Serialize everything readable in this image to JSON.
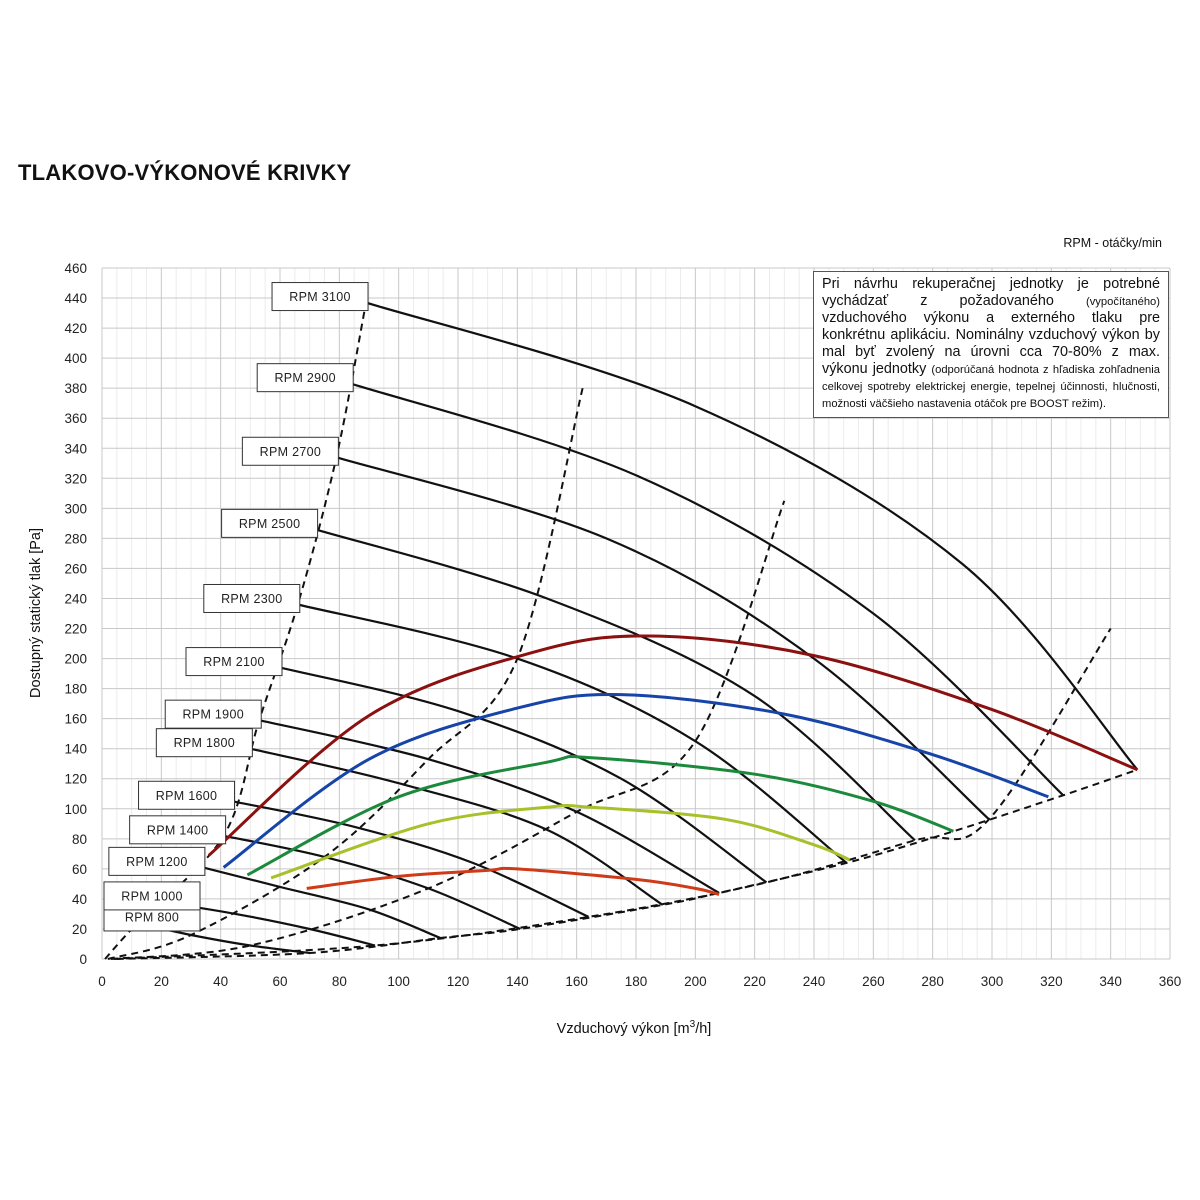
{
  "title": "TLAKOVO-VÝKONOVÉ KRIVKY",
  "rpm_note": "RPM - otáčky/min",
  "info_box": {
    "part1": "Pri návrhu rekuperačnej jednotky je potrebné vychádzať z požadovaného ",
    "part2": "(vypočítaného)",
    "part3": " vzduchového výkonu a externého tlaku pre konkrétnu aplikáciu. Nominálny vzduchový výkon by mal byť zvolený na úrovni cca 70-80% z max. výkonu jednotky ",
    "part4": "(odporúčaná hodnota z hľadiska zohľadnenia celkovej spotreby elektrickej energie, tepelnej účinnosti, hlučnosti, možnosti väčšieho nastavenia otáčok pre BOOST režim)."
  },
  "chart_data": {
    "type": "line",
    "xlabel_main": "Vzduchový výkon [m",
    "xlabel_sup": "3",
    "xlabel_end": "/h]",
    "ylabel": "Dostupný statický tlak [Pa]",
    "xlim": [
      0,
      360
    ],
    "ylim": [
      0,
      460
    ],
    "x_ticks": [
      0,
      20,
      40,
      60,
      80,
      100,
      120,
      140,
      160,
      180,
      200,
      220,
      240,
      260,
      280,
      300,
      320,
      340,
      360
    ],
    "y_ticks": [
      0,
      20,
      40,
      60,
      80,
      100,
      120,
      140,
      160,
      180,
      200,
      220,
      240,
      260,
      280,
      300,
      320,
      340,
      360,
      380,
      400,
      420,
      440,
      460
    ],
    "grid": true,
    "rpm_curves": [
      {
        "label": "RPM 800",
        "points": [
          [
            12,
            24
          ],
          [
            30,
            16
          ],
          [
            50,
            9
          ],
          [
            70,
            4
          ]
        ]
      },
      {
        "label": "RPM 1000",
        "points": [
          [
            20,
            38
          ],
          [
            45,
            30
          ],
          [
            70,
            20
          ],
          [
            92,
            9
          ]
        ]
      },
      {
        "label": "RPM 1200",
        "points": [
          [
            34,
            61
          ],
          [
            60,
            48
          ],
          [
            90,
            33
          ],
          [
            114,
            14
          ]
        ]
      },
      {
        "label": "RPM 1400",
        "points": [
          [
            41,
            82
          ],
          [
            75,
            68
          ],
          [
            110,
            47
          ],
          [
            141,
            20
          ]
        ]
      },
      {
        "label": "RPM 1600",
        "points": [
          [
            44,
            105
          ],
          [
            85,
            88
          ],
          [
            125,
            64
          ],
          [
            164,
            28
          ]
        ]
      },
      {
        "label": "RPM 1800",
        "points": [
          [
            50,
            140
          ],
          [
            100,
            117
          ],
          [
            150,
            86
          ],
          [
            189,
            36
          ]
        ]
      },
      {
        "label": "RPM 1900",
        "points": [
          [
            53,
            159
          ],
          [
            110,
            133
          ],
          [
            160,
            98
          ],
          [
            208,
            44
          ]
        ]
      },
      {
        "label": "RPM 2100",
        "points": [
          [
            60,
            194
          ],
          [
            120,
            165
          ],
          [
            175,
            120
          ],
          [
            224,
            51
          ]
        ]
      },
      {
        "label": "RPM 2300",
        "points": [
          [
            66,
            236
          ],
          [
            140,
            200
          ],
          [
            200,
            145
          ],
          [
            251,
            64
          ]
        ]
      },
      {
        "label": "RPM 2500",
        "points": [
          [
            72,
            286
          ],
          [
            150,
            240
          ],
          [
            220,
            175
          ],
          [
            274,
            79
          ]
        ]
      },
      {
        "label": "RPM 2700",
        "points": [
          [
            79,
            334
          ],
          [
            170,
            280
          ],
          [
            240,
            200
          ],
          [
            299,
            93
          ]
        ]
      },
      {
        "label": "RPM 2900",
        "points": [
          [
            84,
            383
          ],
          [
            180,
            322
          ],
          [
            260,
            230
          ],
          [
            324,
            109
          ]
        ]
      },
      {
        "label": "RPM 3100",
        "points": [
          [
            89,
            437
          ],
          [
            200,
            368
          ],
          [
            290,
            263
          ],
          [
            349,
            126
          ]
        ]
      }
    ],
    "capacity_curves": [
      {
        "name": "dark-red",
        "color": "#8b1010",
        "points": [
          [
            36,
            69
          ],
          [
            90,
            162
          ],
          [
            145,
            204
          ],
          [
            185,
            215
          ],
          [
            240,
            202
          ],
          [
            300,
            166
          ],
          [
            349,
            126
          ]
        ]
      },
      {
        "name": "blue",
        "color": "#1744a8",
        "points": [
          [
            41,
            61
          ],
          [
            90,
            133
          ],
          [
            140,
            167
          ],
          [
            175,
            176
          ],
          [
            230,
            163
          ],
          [
            280,
            136
          ],
          [
            319,
            108
          ]
        ]
      },
      {
        "name": "green",
        "color": "#1c8a3c",
        "points": [
          [
            49,
            56
          ],
          [
            100,
            108
          ],
          [
            150,
            131
          ],
          [
            165,
            134
          ],
          [
            220,
            123
          ],
          [
            260,
            105
          ],
          [
            287,
            85
          ]
        ]
      },
      {
        "name": "yellow-green",
        "color": "#a8c02a",
        "points": [
          [
            57,
            54
          ],
          [
            110,
            90
          ],
          [
            150,
            101
          ],
          [
            165,
            101
          ],
          [
            210,
            93
          ],
          [
            240,
            76
          ],
          [
            252,
            66
          ]
        ]
      },
      {
        "name": "orange-red",
        "color": "#cf3b18",
        "points": [
          [
            69,
            47
          ],
          [
            100,
            55
          ],
          [
            130,
            59
          ],
          [
            140,
            60
          ],
          [
            180,
            53
          ],
          [
            200,
            47
          ],
          [
            208,
            43
          ]
        ]
      }
    ],
    "dashed_curves": [
      {
        "name": "max-speed",
        "points": [
          [
            1,
            0
          ],
          [
            12,
            24
          ],
          [
            41,
            82
          ],
          [
            53,
            159
          ],
          [
            66,
            236
          ],
          [
            79,
            334
          ],
          [
            89,
            437
          ]
        ]
      },
      {
        "name": "min-flow",
        "points": [
          [
            2,
            0
          ],
          [
            30,
            16
          ],
          [
            75,
            68
          ],
          [
            110,
            133
          ],
          [
            140,
            200
          ],
          [
            162,
            380
          ]
        ]
      },
      {
        "name": "mid-flow-1",
        "points": [
          [
            3,
            0
          ],
          [
            50,
            9
          ],
          [
            110,
            47
          ],
          [
            160,
            98
          ],
          [
            200,
            145
          ],
          [
            230,
            305
          ]
        ]
      },
      {
        "name": "mid-flow-2",
        "points": [
          [
            4,
            0
          ],
          [
            92,
            9
          ],
          [
            164,
            28
          ],
          [
            224,
            51
          ],
          [
            274,
            79
          ],
          [
            299,
            93
          ],
          [
            340,
            220
          ]
        ]
      },
      {
        "name": "system-line",
        "points": [
          [
            5,
            0
          ],
          [
            70,
            4
          ],
          [
            114,
            14
          ],
          [
            141,
            20
          ],
          [
            189,
            36
          ],
          [
            208,
            44
          ],
          [
            251,
            64
          ],
          [
            287,
            85
          ],
          [
            324,
            109
          ],
          [
            349,
            126
          ]
        ]
      }
    ]
  }
}
